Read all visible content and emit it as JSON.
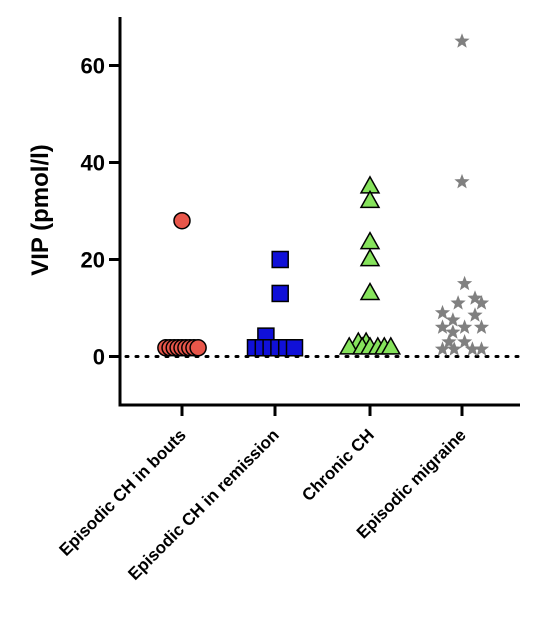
{
  "chart_data": {
    "type": "scatter",
    "ylabel": "VIP (pmol/l)",
    "ylim": [
      -10,
      70
    ],
    "yticks": [
      0,
      20,
      40,
      60
    ],
    "reference_line": {
      "y": 0,
      "style": "dotted"
    },
    "categories": [
      "Episodic CH in bouts",
      "Episodic CH in remission",
      "Chronic CH",
      "Episodic migraine"
    ],
    "series": [
      {
        "category": "Episodic CH in bouts",
        "marker": "circle",
        "fill": "#e8564a",
        "stroke": "#000000",
        "points": [
          {
            "dx": 0,
            "y": 28
          },
          {
            "dx": -0.62,
            "y": 1.8
          },
          {
            "dx": -0.46,
            "y": 1.8
          },
          {
            "dx": -0.3,
            "y": 1.8
          },
          {
            "dx": -0.15,
            "y": 1.8
          },
          {
            "dx": 0.0,
            "y": 1.8
          },
          {
            "dx": 0.15,
            "y": 1.8
          },
          {
            "dx": 0.3,
            "y": 1.8
          },
          {
            "dx": 0.46,
            "y": 1.8
          },
          {
            "dx": 0.62,
            "y": 1.8
          }
        ]
      },
      {
        "category": "Episodic CH in remission",
        "marker": "square",
        "fill": "#1010d8",
        "stroke": "#000000",
        "points": [
          {
            "dx": 0.2,
            "y": 20
          },
          {
            "dx": 0.2,
            "y": 13
          },
          {
            "dx": -0.35,
            "y": 4.2
          },
          {
            "dx": -0.75,
            "y": 1.8
          },
          {
            "dx": -0.45,
            "y": 1.8
          },
          {
            "dx": -0.15,
            "y": 1.8
          },
          {
            "dx": 0.15,
            "y": 1.8
          },
          {
            "dx": 0.45,
            "y": 1.8
          },
          {
            "dx": 0.75,
            "y": 1.8
          }
        ]
      },
      {
        "category": "Chronic CH",
        "marker": "triangle",
        "fill": "#86e35c",
        "stroke": "#000000",
        "points": [
          {
            "dx": 0,
            "y": 35
          },
          {
            "dx": 0,
            "y": 32
          },
          {
            "dx": 0,
            "y": 23.5
          },
          {
            "dx": 0,
            "y": 20
          },
          {
            "dx": 0,
            "y": 13
          },
          {
            "dx": -0.45,
            "y": 2.8
          },
          {
            "dx": -0.15,
            "y": 2.8
          },
          {
            "dx": -0.8,
            "y": 1.8
          },
          {
            "dx": -0.3,
            "y": 1.8
          },
          {
            "dx": 0.0,
            "y": 1.8
          },
          {
            "dx": 0.3,
            "y": 1.8
          },
          {
            "dx": 0.55,
            "y": 1.8
          },
          {
            "dx": 0.8,
            "y": 1.8
          }
        ]
      },
      {
        "category": "Episodic migraine",
        "marker": "star",
        "fill": "#808080",
        "stroke": "none",
        "points": [
          {
            "dx": 0,
            "y": 65
          },
          {
            "dx": 0,
            "y": 36
          },
          {
            "dx": 0.1,
            "y": 15
          },
          {
            "dx": 0.5,
            "y": 12
          },
          {
            "dx": 0.75,
            "y": 11
          },
          {
            "dx": -0.15,
            "y": 11
          },
          {
            "dx": -0.75,
            "y": 9
          },
          {
            "dx": 0.5,
            "y": 8.5
          },
          {
            "dx": -0.35,
            "y": 7.5
          },
          {
            "dx": -0.75,
            "y": 6
          },
          {
            "dx": 0.1,
            "y": 6
          },
          {
            "dx": 0.75,
            "y": 6
          },
          {
            "dx": -0.35,
            "y": 5
          },
          {
            "dx": -0.5,
            "y": 3
          },
          {
            "dx": 0.1,
            "y": 3
          },
          {
            "dx": -0.75,
            "y": 1.5
          },
          {
            "dx": -0.3,
            "y": 1.5
          },
          {
            "dx": 0.4,
            "y": 1.5
          },
          {
            "dx": 0.75,
            "y": 1.5
          }
        ]
      }
    ]
  }
}
